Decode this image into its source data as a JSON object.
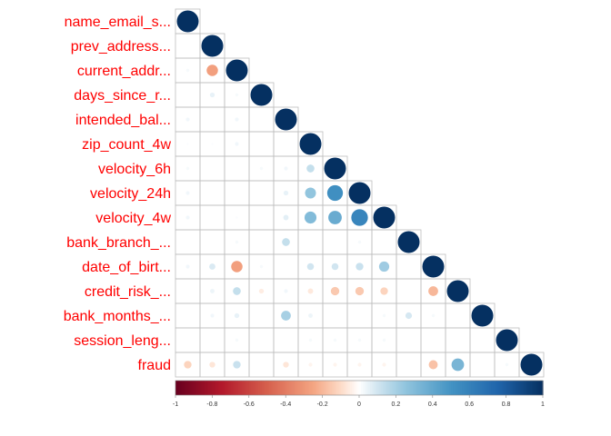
{
  "chart_data": {
    "type": "heatmap",
    "subtype": "correlation-upper-triangle-circles",
    "variables": [
      "name_email_s...",
      "prev_address...",
      "current_addr...",
      "days_since_r...",
      "intended_bal...",
      "zip_count_4w",
      "velocity_6h",
      "velocity_24h",
      "velocity_4w",
      "bank_branch_...",
      "date_of_birt...",
      "credit_risk_...",
      "bank_months_...",
      "session_leng...",
      "fraud"
    ],
    "correlations": [
      {
        "row": 1,
        "col": 0,
        "value": 0.0
      },
      {
        "row": 2,
        "col": 0,
        "value": 0.02
      },
      {
        "row": 2,
        "col": 1,
        "value": -0.27
      },
      {
        "row": 3,
        "col": 0,
        "value": 0.0
      },
      {
        "row": 3,
        "col": 1,
        "value": 0.05
      },
      {
        "row": 3,
        "col": 2,
        "value": 0.02
      },
      {
        "row": 4,
        "col": 0,
        "value": 0.03
      },
      {
        "row": 4,
        "col": 2,
        "value": 0.03
      },
      {
        "row": 5,
        "col": 0,
        "value": 0.01
      },
      {
        "row": 5,
        "col": 1,
        "value": 0.01
      },
      {
        "row": 5,
        "col": 2,
        "value": 0.03
      },
      {
        "row": 6,
        "col": 0,
        "value": 0.02
      },
      {
        "row": 6,
        "col": 3,
        "value": 0.02
      },
      {
        "row": 6,
        "col": 4,
        "value": 0.03
      },
      {
        "row": 6,
        "col": 5,
        "value": 0.13
      },
      {
        "row": 7,
        "col": 0,
        "value": 0.03
      },
      {
        "row": 7,
        "col": 4,
        "value": 0.05
      },
      {
        "row": 7,
        "col": 5,
        "value": 0.25
      },
      {
        "row": 7,
        "col": 6,
        "value": 0.52
      },
      {
        "row": 8,
        "col": 0,
        "value": 0.03
      },
      {
        "row": 8,
        "col": 2,
        "value": 0.01
      },
      {
        "row": 8,
        "col": 4,
        "value": 0.06
      },
      {
        "row": 8,
        "col": 5,
        "value": 0.3
      },
      {
        "row": 8,
        "col": 6,
        "value": 0.38
      },
      {
        "row": 8,
        "col": 7,
        "value": 0.58
      },
      {
        "row": 9,
        "col": 0,
        "value": 0.0
      },
      {
        "row": 9,
        "col": 2,
        "value": 0.02
      },
      {
        "row": 9,
        "col": 4,
        "value": 0.13
      },
      {
        "row": 9,
        "col": 7,
        "value": 0.02
      },
      {
        "row": 10,
        "col": 0,
        "value": 0.03
      },
      {
        "row": 10,
        "col": 1,
        "value": 0.08
      },
      {
        "row": 10,
        "col": 2,
        "value": -0.27
      },
      {
        "row": 10,
        "col": 3,
        "value": 0.02
      },
      {
        "row": 10,
        "col": 5,
        "value": 0.1
      },
      {
        "row": 10,
        "col": 6,
        "value": 0.1
      },
      {
        "row": 10,
        "col": 7,
        "value": 0.12
      },
      {
        "row": 10,
        "col": 8,
        "value": 0.22
      },
      {
        "row": 11,
        "col": 1,
        "value": 0.04
      },
      {
        "row": 11,
        "col": 2,
        "value": 0.13
      },
      {
        "row": 11,
        "col": 3,
        "value": -0.05
      },
      {
        "row": 11,
        "col": 4,
        "value": 0.03
      },
      {
        "row": 11,
        "col": 5,
        "value": -0.06
      },
      {
        "row": 11,
        "col": 6,
        "value": -0.15
      },
      {
        "row": 11,
        "col": 7,
        "value": -0.15
      },
      {
        "row": 11,
        "col": 8,
        "value": -0.12
      },
      {
        "row": 11,
        "col": 10,
        "value": -0.2
      },
      {
        "row": 12,
        "col": 1,
        "value": 0.03
      },
      {
        "row": 12,
        "col": 2,
        "value": 0.05
      },
      {
        "row": 12,
        "col": 4,
        "value": 0.2
      },
      {
        "row": 12,
        "col": 5,
        "value": 0.04
      },
      {
        "row": 12,
        "col": 8,
        "value": 0.02
      },
      {
        "row": 12,
        "col": 9,
        "value": 0.09
      },
      {
        "row": 12,
        "col": 10,
        "value": 0.02
      },
      {
        "row": 13,
        "col": 2,
        "value": 0.02
      },
      {
        "row": 13,
        "col": 5,
        "value": 0.02
      },
      {
        "row": 13,
        "col": 6,
        "value": 0.02
      },
      {
        "row": 13,
        "col": 7,
        "value": 0.02
      },
      {
        "row": 13,
        "col": 8,
        "value": 0.02
      },
      {
        "row": 14,
        "col": 0,
        "value": -0.12
      },
      {
        "row": 14,
        "col": 1,
        "value": -0.07
      },
      {
        "row": 14,
        "col": 2,
        "value": 0.12
      },
      {
        "row": 14,
        "col": 4,
        "value": -0.07
      },
      {
        "row": 14,
        "col": 5,
        "value": -0.03
      },
      {
        "row": 14,
        "col": 6,
        "value": -0.03
      },
      {
        "row": 14,
        "col": 7,
        "value": -0.03
      },
      {
        "row": 14,
        "col": 8,
        "value": -0.03
      },
      {
        "row": 14,
        "col": 10,
        "value": -0.17
      },
      {
        "row": 14,
        "col": 11,
        "value": 0.33
      },
      {
        "row": 14,
        "col": 13,
        "value": 0.02
      }
    ],
    "diagonal_value": 1,
    "color_scale": {
      "min": -1,
      "max": 1,
      "ticks": [
        -1,
        -0.8,
        -0.6,
        -0.4,
        -0.2,
        0,
        0.2,
        0.4,
        0.6,
        0.8,
        1
      ],
      "tick_labels": [
        "-1",
        "-0.8",
        "-0.6",
        "-0.4",
        "-0.2",
        "0",
        "0.2",
        "0.4",
        "0.6",
        "0.8",
        "1"
      ],
      "stops": [
        {
          "v": -1,
          "color": "#67001f"
        },
        {
          "v": -0.75,
          "color": "#b2182b"
        },
        {
          "v": -0.5,
          "color": "#d6604d"
        },
        {
          "v": -0.25,
          "color": "#f4a582"
        },
        {
          "v": -0.1,
          "color": "#fddbc7"
        },
        {
          "v": 0,
          "color": "#ffffff"
        },
        {
          "v": 0.1,
          "color": "#d1e5f0"
        },
        {
          "v": 0.25,
          "color": "#92c5de"
        },
        {
          "v": 0.5,
          "color": "#4393c3"
        },
        {
          "v": 0.75,
          "color": "#2166ac"
        },
        {
          "v": 1,
          "color": "#053061"
        }
      ]
    },
    "label_color": "#ff0000",
    "grid_color": "#bebebe",
    "legend_position": "bottom"
  }
}
